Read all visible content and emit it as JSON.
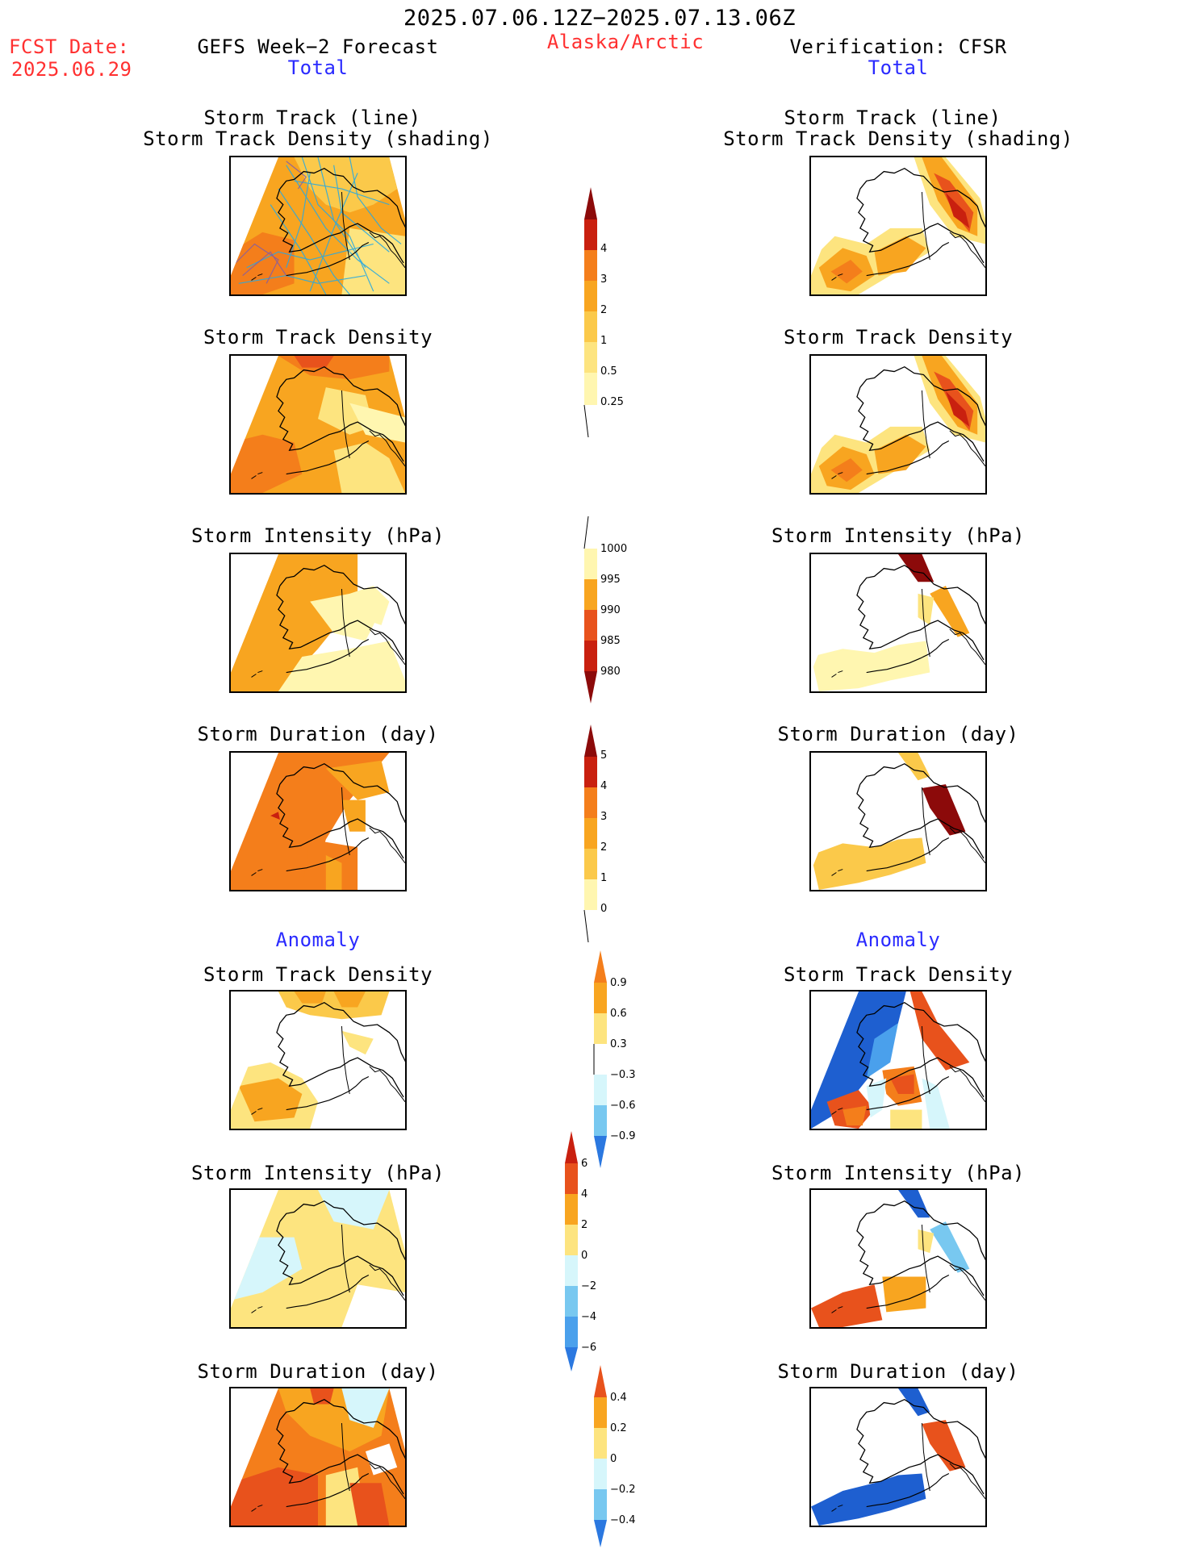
{
  "header": {
    "date_range": "2025.07.06.12Z−2025.07.13.06Z",
    "fcst_label": "FCST Date:",
    "fcst_date": "2025.06.29",
    "left_title": "GEFS Week−2 Forecast",
    "region": "Alaska/Arctic",
    "right_title": "Verification: CFSR"
  },
  "sections": {
    "total": "Total",
    "anomaly": "Anomaly"
  },
  "panel_titles": {
    "track_line": "Storm Track (line)",
    "track_density_shading": "Storm Track Density (shading)",
    "track_density": "Storm Track Density",
    "intensity": "Storm Intensity (hPa)",
    "duration": "Storm Duration (day)"
  },
  "colorbars": {
    "density": [
      "0.25",
      "0.5",
      "1",
      "2",
      "3",
      "4"
    ],
    "intensity": [
      "1000",
      "995",
      "990",
      "985",
      "980"
    ],
    "duration": [
      "0",
      "1",
      "2",
      "3",
      "4",
      "5"
    ],
    "density_anom": [
      "0.9",
      "0.6",
      "0.3",
      "−0.3",
      "−0.6",
      "−0.9"
    ],
    "intensity_anom": [
      "6",
      "4",
      "2",
      "0",
      "−2",
      "−4",
      "−6"
    ],
    "duration_anom": [
      "0.4",
      "0.2",
      "0",
      "−0.2",
      "−0.4"
    ]
  },
  "colors": {
    "text_red": "#ff3030",
    "text_blue": "#2a2aff",
    "warm": [
      "#fff6b0",
      "#fde47f",
      "#fbc94a",
      "#f8a520",
      "#f47e1b",
      "#e8521c",
      "#c9200f",
      "#8c0a0a"
    ],
    "cool": [
      "#d6f6fb",
      "#a8e8f5",
      "#78c8f0",
      "#4aa0ec",
      "#2b78e0",
      "#1e5fd0"
    ],
    "storm_track_line": "#29a9e0",
    "storm_track_line_dense": "#7a5ab0"
  },
  "icons": {
    "map": "alaska-map-outline"
  }
}
